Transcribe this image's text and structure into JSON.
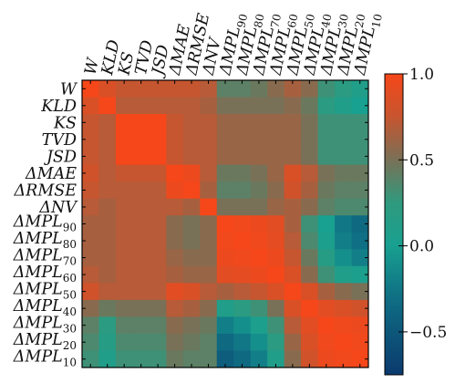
{
  "chart_data": {
    "type": "heatmap",
    "labels": [
      {
        "main": "W",
        "sub": ""
      },
      {
        "main": "KLD",
        "sub": ""
      },
      {
        "main": "KS",
        "sub": ""
      },
      {
        "main": "TVD",
        "sub": ""
      },
      {
        "main": "JSD",
        "sub": ""
      },
      {
        "main": "ΔMAE",
        "sub": ""
      },
      {
        "main": "ΔRMSE",
        "sub": ""
      },
      {
        "main": "ΔNV",
        "sub": ""
      },
      {
        "main": "ΔMPL",
        "sub": "90"
      },
      {
        "main": "ΔMPL",
        "sub": "80"
      },
      {
        "main": "ΔMPL",
        "sub": "70"
      },
      {
        "main": "ΔMPL",
        "sub": "60"
      },
      {
        "main": "ΔMPL",
        "sub": "50"
      },
      {
        "main": "ΔMPL",
        "sub": "40"
      },
      {
        "main": "ΔMPL",
        "sub": "30"
      },
      {
        "main": "ΔMPL",
        "sub": "20"
      },
      {
        "main": "ΔMPL",
        "sub": "10"
      }
    ],
    "matrix": [
      [
        1.0,
        0.85,
        0.75,
        0.75,
        0.75,
        0.75,
        0.75,
        0.7,
        0.4,
        0.4,
        0.45,
        0.55,
        0.65,
        0.55,
        0.3,
        0.2,
        0.1
      ],
      [
        0.85,
        1.0,
        0.7,
        0.7,
        0.7,
        0.7,
        0.7,
        0.65,
        0.5,
        0.5,
        0.5,
        0.5,
        0.55,
        0.45,
        0.2,
        0.1,
        0.0
      ],
      [
        0.75,
        0.7,
        1.0,
        1.0,
        1.0,
        0.75,
        0.7,
        0.7,
        0.6,
        0.6,
        0.6,
        0.6,
        0.6,
        0.5,
        0.3,
        0.3,
        0.3
      ],
      [
        0.75,
        0.7,
        1.0,
        1.0,
        1.0,
        0.75,
        0.7,
        0.7,
        0.6,
        0.6,
        0.6,
        0.6,
        0.6,
        0.5,
        0.3,
        0.3,
        0.3
      ],
      [
        0.75,
        0.7,
        1.0,
        1.0,
        1.0,
        0.75,
        0.7,
        0.7,
        0.6,
        0.6,
        0.6,
        0.6,
        0.6,
        0.5,
        0.3,
        0.3,
        0.3
      ],
      [
        0.8,
        0.7,
        0.75,
        0.75,
        0.75,
        1.0,
        0.95,
        0.7,
        0.45,
        0.45,
        0.5,
        0.6,
        0.85,
        0.7,
        0.5,
        0.45,
        0.45
      ],
      [
        0.75,
        0.7,
        0.7,
        0.7,
        0.7,
        0.95,
        1.0,
        0.65,
        0.4,
        0.4,
        0.45,
        0.55,
        0.8,
        0.65,
        0.45,
        0.4,
        0.4
      ],
      [
        0.7,
        0.65,
        0.7,
        0.7,
        0.7,
        0.7,
        0.65,
        1.0,
        0.5,
        0.5,
        0.5,
        0.6,
        0.65,
        0.55,
        0.4,
        0.35,
        0.35
      ],
      [
        0.65,
        0.65,
        0.7,
        0.7,
        0.7,
        0.55,
        0.5,
        0.55,
        1.0,
        0.98,
        0.95,
        0.9,
        0.65,
        0.3,
        0.0,
        -0.25,
        -0.35
      ],
      [
        0.65,
        0.65,
        0.7,
        0.7,
        0.7,
        0.55,
        0.5,
        0.55,
        0.98,
        1.0,
        0.97,
        0.92,
        0.7,
        0.35,
        0.05,
        -0.2,
        -0.3
      ],
      [
        0.65,
        0.65,
        0.7,
        0.7,
        0.7,
        0.6,
        0.55,
        0.55,
        0.95,
        0.97,
        1.0,
        0.95,
        0.75,
        0.45,
        0.15,
        -0.1,
        -0.2
      ],
      [
        0.7,
        0.65,
        0.7,
        0.7,
        0.7,
        0.65,
        0.6,
        0.6,
        0.9,
        0.92,
        0.95,
        1.0,
        0.85,
        0.55,
        0.3,
        0.1,
        0.05
      ],
      [
        0.8,
        0.7,
        0.7,
        0.7,
        0.7,
        0.9,
        0.85,
        0.7,
        0.65,
        0.7,
        0.75,
        0.85,
        1.0,
        0.85,
        0.65,
        0.55,
        0.5
      ],
      [
        0.55,
        0.45,
        0.5,
        0.5,
        0.5,
        0.7,
        0.65,
        0.55,
        0.1,
        0.2,
        0.3,
        0.5,
        0.85,
        1.0,
        0.9,
        0.85,
        0.8
      ],
      [
        0.4,
        0.2,
        0.4,
        0.4,
        0.4,
        0.55,
        0.5,
        0.45,
        -0.2,
        -0.1,
        0.05,
        0.3,
        0.7,
        0.9,
        1.0,
        0.97,
        0.95
      ],
      [
        0.35,
        0.15,
        0.35,
        0.35,
        0.35,
        0.5,
        0.45,
        0.4,
        -0.35,
        -0.25,
        -0.1,
        0.2,
        0.6,
        0.85,
        0.97,
        1.0,
        0.98
      ],
      [
        0.3,
        0.1,
        0.3,
        0.3,
        0.3,
        0.45,
        0.4,
        0.4,
        -0.45,
        -0.35,
        -0.2,
        0.1,
        0.55,
        0.8,
        0.95,
        0.98,
        1.0
      ]
    ],
    "colorbar": {
      "range": [
        -0.75,
        1.0
      ],
      "ticks": [
        1.0,
        0.5,
        0.0,
        -0.5
      ],
      "tick_labels": [
        "1.0",
        "0.5",
        "0.0",
        "−0.5"
      ],
      "colors": {
        "high": "#f5471a",
        "mid": "#18a090",
        "low": "#0b3a6e"
      }
    }
  }
}
